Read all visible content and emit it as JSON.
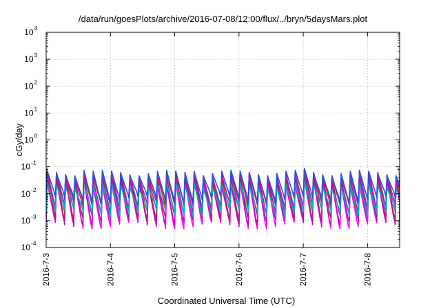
{
  "chart_data": {
    "type": "line",
    "title": "/data/run/goesPlots/archive/2016-07-08/12:00/flux/../bryn/5daysMars.plot",
    "xlabel": "Coordinated Universal Time (UTC)",
    "ylabel": "cGy/day",
    "yscale": "log",
    "ylim": [
      0.0001,
      10000
    ],
    "yticks": [
      {
        "base": "10",
        "exp": "-4"
      },
      {
        "base": "10",
        "exp": "-3"
      },
      {
        "base": "10",
        "exp": "-2"
      },
      {
        "base": "10",
        "exp": "-1"
      },
      {
        "base": "10",
        "exp": "0"
      },
      {
        "base": "10",
        "exp": "1"
      },
      {
        "base": "10",
        "exp": "2"
      },
      {
        "base": "10",
        "exp": "3"
      },
      {
        "base": "10",
        "exp": "4"
      }
    ],
    "xlim": [
      "2016-07-03T00:00",
      "2016-07-08T12:00"
    ],
    "xticks": [
      "2016-7-3",
      "2016-7-4",
      "2016-7-5",
      "2016-7-6",
      "2016-7-7",
      "2016-7-8"
    ],
    "grid": true,
    "legend": "none",
    "cycles_per_day": 7,
    "series": [
      {
        "color": "#ff00ff",
        "peak": 0.025,
        "trough": 0.0007
      },
      {
        "color": "#cc00cc",
        "peak": 0.03,
        "trough": 0.0009
      },
      {
        "color": "#a0286e",
        "peak": 0.04,
        "trough": 0.0015
      },
      {
        "color": "#e01e1e",
        "peak": 0.05,
        "trough": 0.003
      },
      {
        "color": "#8b2be2",
        "peak": 0.055,
        "trough": 0.004
      },
      {
        "color": "#00b5b5",
        "peak": 0.02,
        "trough": 0.002
      },
      {
        "color": "#2f4fd8",
        "peak": 0.06,
        "trough": 0.006
      }
    ]
  }
}
